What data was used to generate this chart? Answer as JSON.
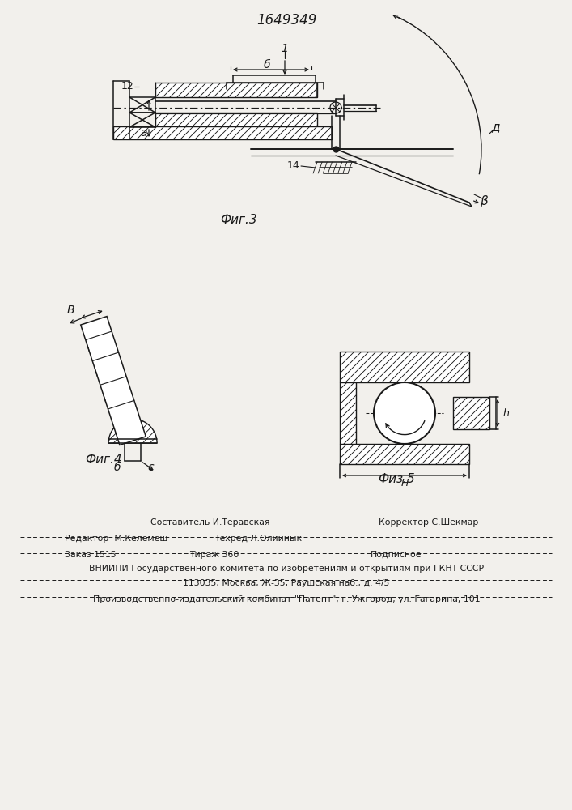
{
  "title": "1649349",
  "bg": "#f2f0ec",
  "lc": "#1a1a1a",
  "fig3_label": "Фиг.3",
  "fig4_label": "Фиг.4",
  "fig5_label": "Физ.5",
  "footer": {
    "l1a": "Составитель И.Теравская",
    "l1b": "Корректор С.Шекмар",
    "l2a": "Редактор  М.Келемеш",
    "l2b": "Техред Л.Олийнык",
    "l3a": "Заказ 1515",
    "l3b": "Тираж 360",
    "l3c": "Подписное",
    "l4": "ВНИИПИ Государственного комитета по изобретениям и открытиям при ГКНТ СССР",
    "l5": "113035, Москва, Ж-35, Раушская наб., д. 4/5",
    "l6": "Производственно-издательский комбинат \"Патент\", г. Ужгород, ул. Гагарина, 101"
  }
}
